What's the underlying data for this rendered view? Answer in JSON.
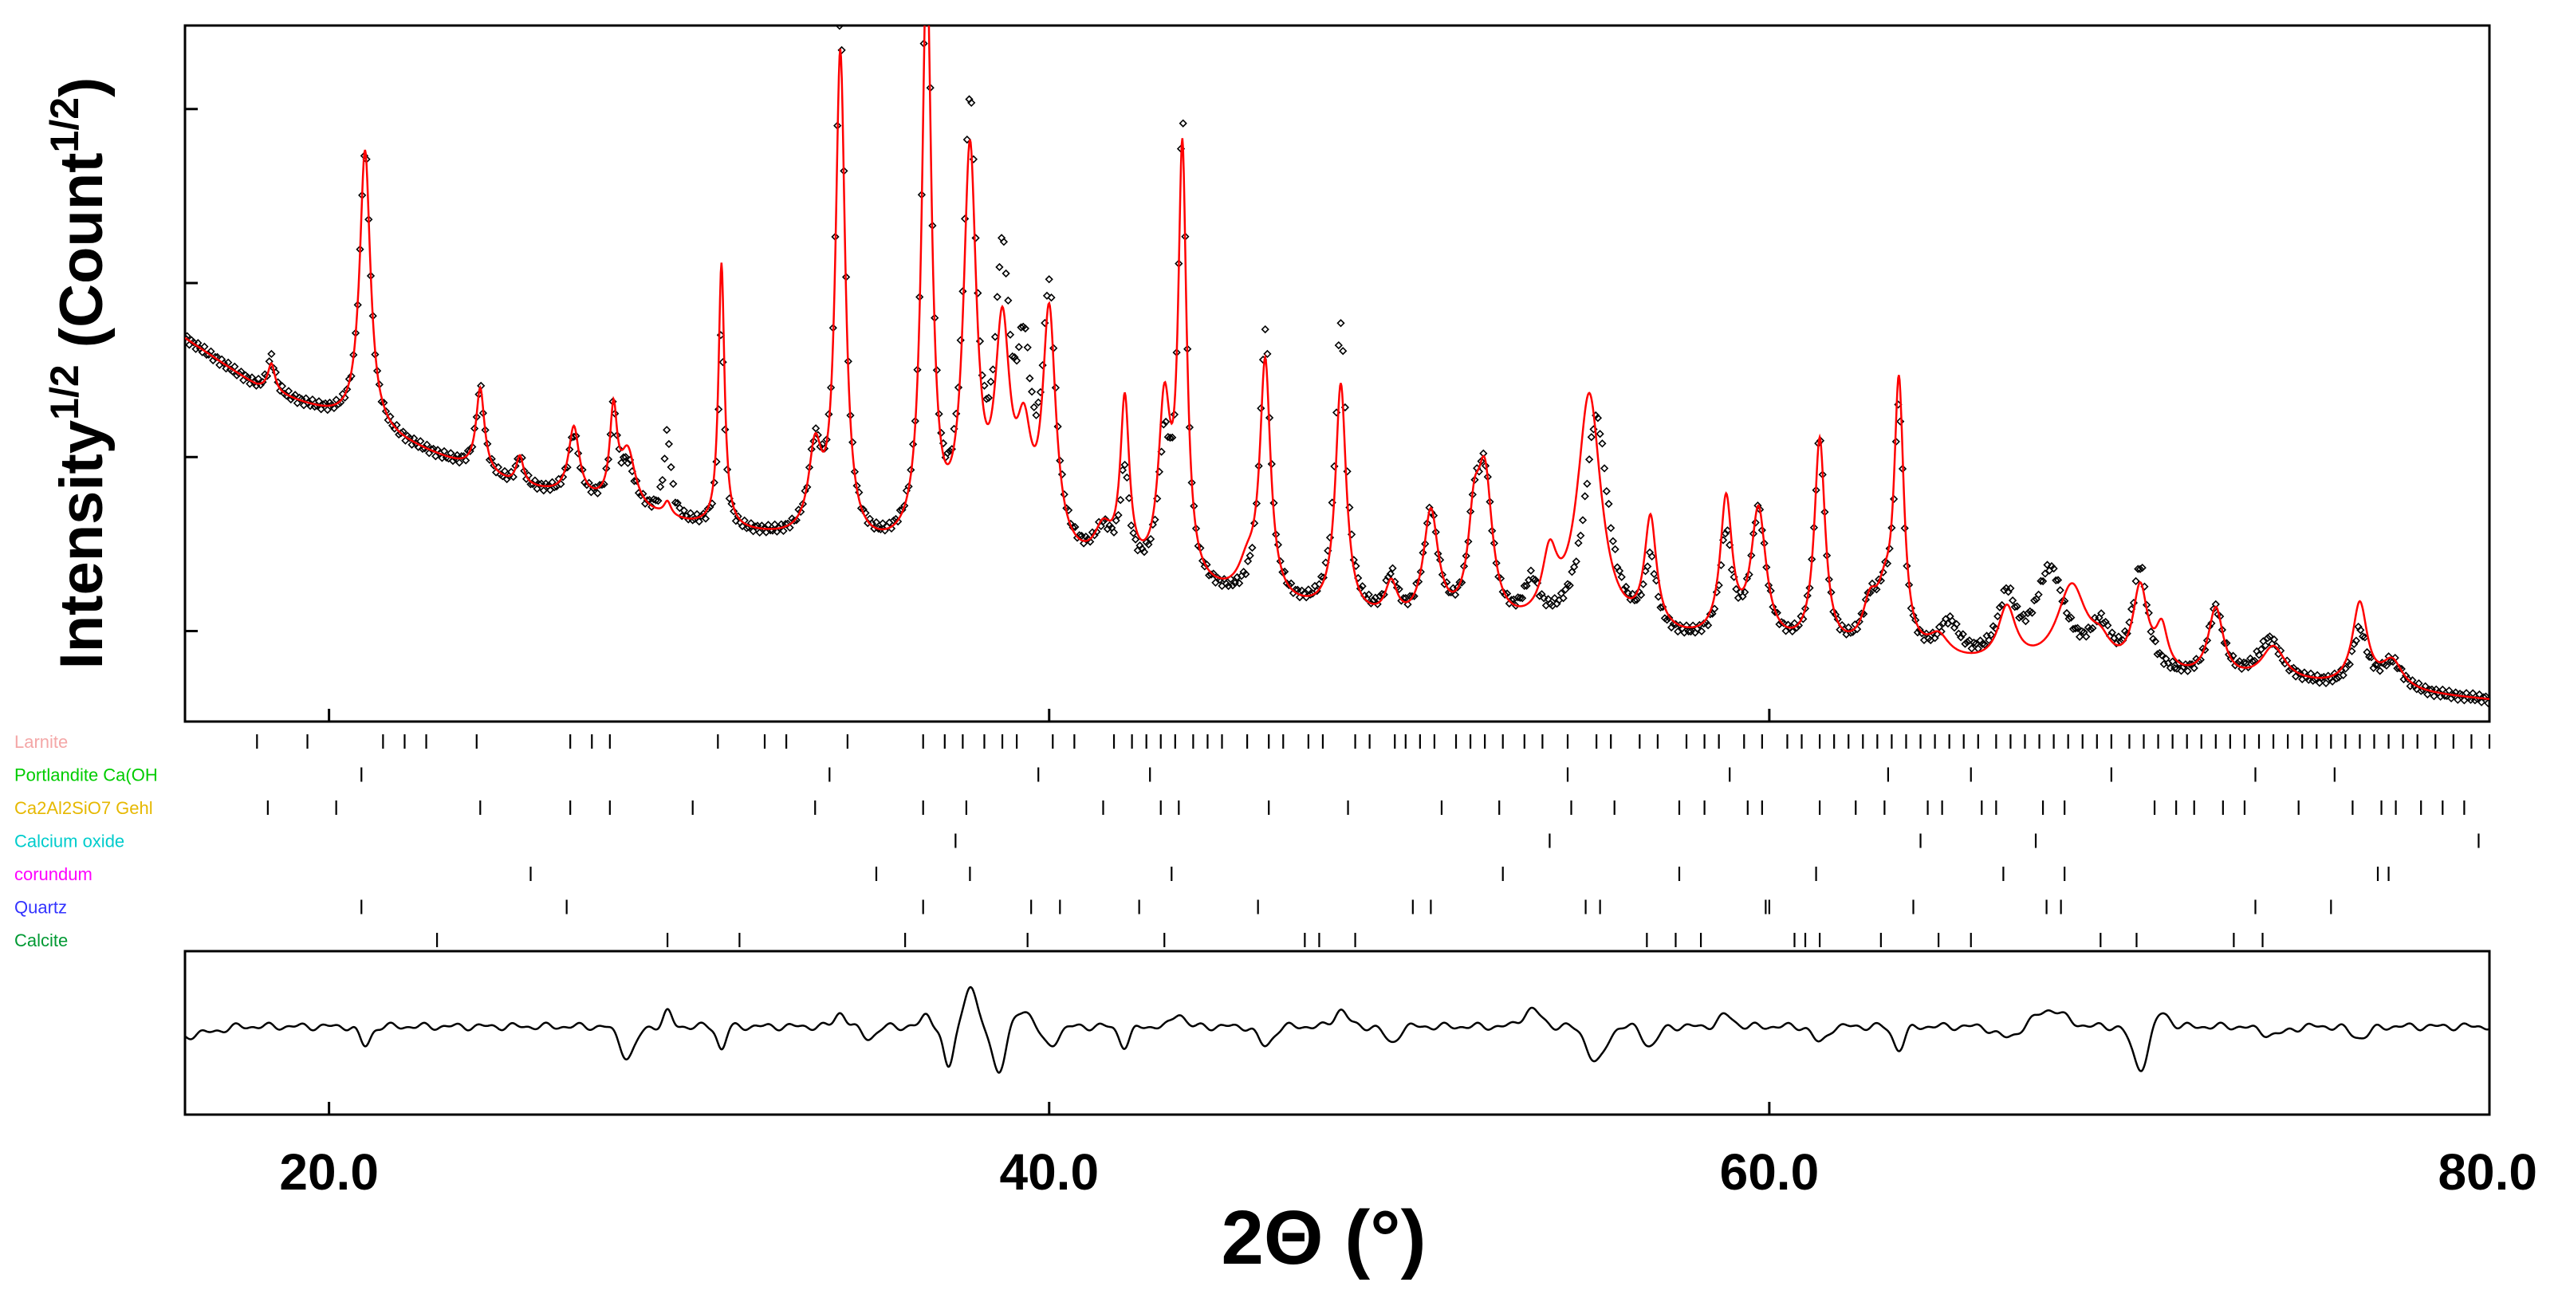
{
  "chart_data": {
    "type": "scatter",
    "title": "",
    "xlabel": "2Θ (°)",
    "ylabel": {
      "text": "Intensity",
      "sup1": "1/2",
      "text2": " (Count",
      "sup2": "1/2",
      "text3": ")"
    },
    "xlim": [
      16.0,
      80.0
    ],
    "x_ticks": [
      {
        "value": 20,
        "label": "20.0"
      },
      {
        "value": 40,
        "label": "40.0"
      },
      {
        "value": 60,
        "label": "60.0"
      },
      {
        "value": 80,
        "label": "80.0"
      }
    ],
    "y_scale": "sqrt",
    "y_ticks_labeled": false,
    "y_ticks_rel": [
      0.13,
      0.38,
      0.63,
      0.88
    ],
    "series": [
      {
        "role": "observed",
        "style": "open-diamond-markers",
        "color": "#000000"
      },
      {
        "role": "calculated",
        "style": "line",
        "color": "#ff0000"
      },
      {
        "role": "difference",
        "style": "line",
        "color": "#000000"
      }
    ],
    "background": [
      [
        16,
        0.55
      ],
      [
        18,
        0.48
      ],
      [
        20,
        0.44
      ],
      [
        25,
        0.34
      ],
      [
        30,
        0.28
      ],
      [
        35,
        0.24
      ],
      [
        40,
        0.22
      ],
      [
        45,
        0.17
      ],
      [
        50,
        0.13
      ],
      [
        55,
        0.12
      ],
      [
        60,
        0.1
      ],
      [
        65,
        0.08
      ],
      [
        70,
        0.06
      ],
      [
        75,
        0.05
      ],
      [
        80,
        0.03
      ]
    ],
    "peaks_obs": [
      [
        18.4,
        0.05,
        0.12
      ],
      [
        21.0,
        0.4,
        0.18
      ],
      [
        24.2,
        0.12,
        0.14
      ],
      [
        25.3,
        0.04,
        0.12
      ],
      [
        26.8,
        0.09,
        0.18
      ],
      [
        27.9,
        0.13,
        0.12
      ],
      [
        28.3,
        0.06,
        0.25
      ],
      [
        29.4,
        0.12,
        0.12
      ],
      [
        30.9,
        0.28,
        0.1
      ],
      [
        33.5,
        0.12,
        0.22
      ],
      [
        34.2,
        0.74,
        0.16
      ],
      [
        36.6,
        0.88,
        0.16
      ],
      [
        37.8,
        0.62,
        0.22
      ],
      [
        38.7,
        0.38,
        0.25
      ],
      [
        39.3,
        0.24,
        0.25
      ],
      [
        40.0,
        0.36,
        0.22
      ],
      [
        41.5,
        0.05,
        0.3
      ],
      [
        42.1,
        0.14,
        0.15
      ],
      [
        43.2,
        0.18,
        0.2
      ],
      [
        43.7,
        0.65,
        0.14
      ],
      [
        46.0,
        0.39,
        0.18
      ],
      [
        48.1,
        0.42,
        0.18
      ],
      [
        49.5,
        0.06,
        0.2
      ],
      [
        50.6,
        0.16,
        0.25
      ],
      [
        51.8,
        0.12,
        0.2
      ],
      [
        52.1,
        0.2,
        0.25
      ],
      [
        53.4,
        0.06,
        0.25
      ],
      [
        55.2,
        0.31,
        0.4
      ],
      [
        56.7,
        0.1,
        0.2
      ],
      [
        58.8,
        0.15,
        0.2
      ],
      [
        59.7,
        0.19,
        0.25
      ],
      [
        61.4,
        0.3,
        0.18
      ],
      [
        62.8,
        0.06,
        0.25
      ],
      [
        63.2,
        0.06,
        0.25
      ],
      [
        63.6,
        0.34,
        0.16
      ],
      [
        65.0,
        0.05,
        0.35
      ],
      [
        66.6,
        0.09,
        0.3
      ],
      [
        67.8,
        0.14,
        0.5
      ],
      [
        69.2,
        0.06,
        0.35
      ],
      [
        70.3,
        0.15,
        0.25
      ],
      [
        72.4,
        0.1,
        0.25
      ],
      [
        73.9,
        0.06,
        0.4
      ],
      [
        76.4,
        0.08,
        0.25
      ],
      [
        77.3,
        0.04,
        0.35
      ]
    ],
    "peaks_calc": [
      [
        18.4,
        0.04,
        0.12
      ],
      [
        21.0,
        0.4,
        0.18
      ],
      [
        24.2,
        0.12,
        0.14
      ],
      [
        25.3,
        0.04,
        0.12
      ],
      [
        26.8,
        0.1,
        0.18
      ],
      [
        27.9,
        0.13,
        0.12
      ],
      [
        28.3,
        0.08,
        0.25
      ],
      [
        29.4,
        0.02,
        0.12
      ],
      [
        30.9,
        0.38,
        0.1
      ],
      [
        33.5,
        0.12,
        0.22
      ],
      [
        34.2,
        0.7,
        0.16
      ],
      [
        36.6,
        0.84,
        0.16
      ],
      [
        37.8,
        0.56,
        0.22
      ],
      [
        38.7,
        0.3,
        0.25
      ],
      [
        39.3,
        0.14,
        0.25
      ],
      [
        40.0,
        0.34,
        0.22
      ],
      [
        41.5,
        0.05,
        0.3
      ],
      [
        42.1,
        0.24,
        0.15
      ],
      [
        43.2,
        0.24,
        0.2
      ],
      [
        43.7,
        0.61,
        0.14
      ],
      [
        45.5,
        0.04,
        0.3
      ],
      [
        46.0,
        0.34,
        0.18
      ],
      [
        48.1,
        0.33,
        0.18
      ],
      [
        49.5,
        0.05,
        0.2
      ],
      [
        50.6,
        0.16,
        0.25
      ],
      [
        51.8,
        0.12,
        0.2
      ],
      [
        52.1,
        0.2,
        0.25
      ],
      [
        53.9,
        0.09,
        0.25
      ],
      [
        55.0,
        0.34,
        0.4
      ],
      [
        56.7,
        0.16,
        0.2
      ],
      [
        58.8,
        0.2,
        0.2
      ],
      [
        59.7,
        0.19,
        0.25
      ],
      [
        61.4,
        0.3,
        0.18
      ],
      [
        62.8,
        0.06,
        0.25
      ],
      [
        63.2,
        0.06,
        0.25
      ],
      [
        63.6,
        0.38,
        0.16
      ],
      [
        64.7,
        0.03,
        0.35
      ],
      [
        66.6,
        0.08,
        0.3
      ],
      [
        68.4,
        0.12,
        0.5
      ],
      [
        69.2,
        0.03,
        0.35
      ],
      [
        70.3,
        0.12,
        0.25
      ],
      [
        70.9,
        0.06,
        0.2
      ],
      [
        72.4,
        0.1,
        0.25
      ],
      [
        74.0,
        0.05,
        0.4
      ],
      [
        76.4,
        0.12,
        0.25
      ],
      [
        77.3,
        0.04,
        0.35
      ]
    ],
    "difference_features": [
      [
        21.0,
        -0.35,
        0.15
      ],
      [
        28.3,
        -0.55,
        0.22
      ],
      [
        29.4,
        0.25,
        0.12
      ],
      [
        30.9,
        -0.4,
        0.12
      ],
      [
        34.2,
        0.25,
        0.15
      ],
      [
        35.0,
        -0.2,
        0.2
      ],
      [
        36.6,
        0.2,
        0.14
      ],
      [
        37.2,
        -0.75,
        0.14
      ],
      [
        37.8,
        0.75,
        0.16
      ],
      [
        38.6,
        -0.8,
        0.18
      ],
      [
        39.3,
        0.3,
        0.22
      ],
      [
        40.0,
        -0.35,
        0.22
      ],
      [
        42.1,
        -0.35,
        0.15
      ],
      [
        43.6,
        0.25,
        0.15
      ],
      [
        46.0,
        -0.35,
        0.2
      ],
      [
        48.1,
        0.3,
        0.18
      ],
      [
        49.5,
        -0.3,
        0.18
      ],
      [
        53.4,
        0.3,
        0.25
      ],
      [
        55.2,
        -0.65,
        0.25
      ],
      [
        56.7,
        -0.35,
        0.2
      ],
      [
        58.8,
        0.2,
        0.2
      ],
      [
        61.4,
        -0.3,
        0.18
      ],
      [
        63.6,
        -0.4,
        0.16
      ],
      [
        66.6,
        -0.2,
        0.3
      ],
      [
        67.8,
        0.3,
        0.4
      ],
      [
        70.3,
        -0.75,
        0.22
      ],
      [
        70.9,
        0.25,
        0.2
      ],
      [
        74.0,
        -0.15,
        0.35
      ],
      [
        76.4,
        -0.2,
        0.25
      ]
    ],
    "phases": [
      {
        "name": "Larnite",
        "color": "#f4a7a7",
        "ticks": [
          18.0,
          19.4,
          21.5,
          22.1,
          22.7,
          24.1,
          26.7,
          27.3,
          27.8,
          30.8,
          32.1,
          32.7,
          34.4,
          36.5,
          37.1,
          37.6,
          38.2,
          38.7,
          39.1,
          40.1,
          40.7,
          41.8,
          42.3,
          42.7,
          43.1,
          43.5,
          44.0,
          44.4,
          44.8,
          45.5,
          46.1,
          46.5,
          47.2,
          47.6,
          48.5,
          48.9,
          49.6,
          49.9,
          50.3,
          50.7,
          51.3,
          51.7,
          52.1,
          52.6,
          53.2,
          53.7,
          54.4,
          55.2,
          55.6,
          56.4,
          56.9,
          57.7,
          58.2,
          58.6,
          59.3,
          59.8,
          60.5,
          60.9,
          61.4,
          61.8,
          62.2,
          62.6,
          63.0,
          63.4,
          63.8,
          64.2,
          64.6,
          65.0,
          65.4,
          65.8,
          66.3,
          66.7,
          67.1,
          67.5,
          67.9,
          68.3,
          68.7,
          69.1,
          69.5,
          70.0,
          70.4,
          70.8,
          71.2,
          71.6,
          72.0,
          72.4,
          72.8,
          73.2,
          73.6,
          74.0,
          74.4,
          74.8,
          75.2,
          75.6,
          76.0,
          76.4,
          76.8,
          77.2,
          77.6,
          78.0,
          78.5,
          79.0,
          79.5,
          80.0
        ]
      },
      {
        "name": "Portlandite Ca(OH",
        "color": "#00cc00",
        "ticks": [
          20.9,
          33.9,
          39.7,
          42.8,
          54.4,
          58.9,
          63.3,
          65.6,
          69.5,
          73.5,
          75.7
        ]
      },
      {
        "name": "Ca2Al2SiO7 Gehl",
        "color": "#e6b800",
        "ticks": [
          18.3,
          20.2,
          24.2,
          26.7,
          27.8,
          30.1,
          33.5,
          36.5,
          37.7,
          41.5,
          43.1,
          43.6,
          46.1,
          48.3,
          50.9,
          52.5,
          54.5,
          55.7,
          57.5,
          58.2,
          59.4,
          59.8,
          61.4,
          62.4,
          63.2,
          64.4,
          64.8,
          65.9,
          66.3,
          67.6,
          68.2,
          70.7,
          71.3,
          71.8,
          72.6,
          73.2,
          74.7,
          76.2,
          77.0,
          77.4,
          78.1,
          78.7,
          79.3
        ]
      },
      {
        "name": "Calcium oxide",
        "color": "#00cccc",
        "ticks": [
          37.4,
          53.9,
          64.2,
          67.4,
          79.7
        ]
      },
      {
        "name": "corundum",
        "color": "#ff00ff",
        "ticks": [
          25.6,
          35.2,
          37.8,
          43.4,
          52.6,
          57.5,
          61.3,
          66.5,
          68.2,
          76.9,
          77.2
        ]
      },
      {
        "name": "Quartz",
        "color": "#3333ff",
        "ticks": [
          20.9,
          26.6,
          36.5,
          39.5,
          40.3,
          42.5,
          45.8,
          50.1,
          50.6,
          54.9,
          55.3,
          59.9,
          60.0,
          64.0,
          67.7,
          68.1,
          73.5,
          75.6
        ]
      },
      {
        "name": "Calcite",
        "color": "#009933",
        "ticks": [
          23.0,
          29.4,
          31.4,
          36.0,
          39.4,
          43.2,
          47.1,
          47.5,
          48.5,
          56.6,
          57.4,
          58.1,
          60.7,
          61.0,
          61.4,
          63.1,
          64.7,
          65.6,
          69.2,
          70.2,
          72.9,
          73.7
        ]
      }
    ]
  }
}
